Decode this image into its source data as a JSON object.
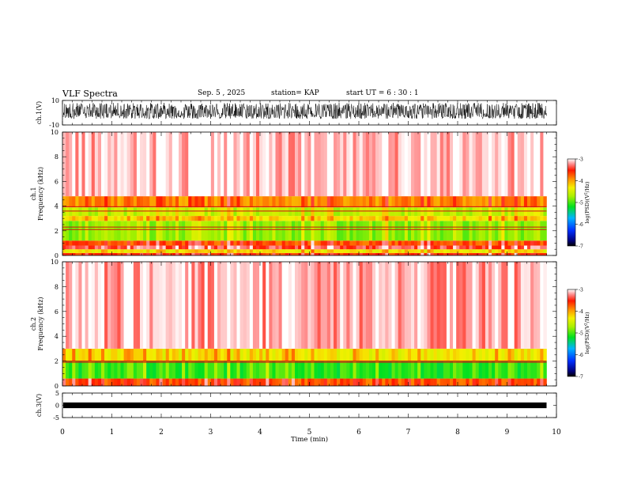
{
  "header": {
    "title": "VLF Spectra",
    "date": "Sep. 5 , 2025",
    "station": "station= KAP",
    "start": "start  UT =   6 : 30 : 1"
  },
  "chart_data": [
    {
      "type": "line",
      "title": "ch.1(V)",
      "ylabel": "ch.1(V)",
      "ylim": [
        -10,
        10
      ],
      "ytick_labels": [
        "10",
        "-10"
      ],
      "xlim": [
        0,
        10
      ],
      "data_extent_min": 9.8,
      "description": "noisy waveform oscillating mostly between about -5 and +8 V"
    },
    {
      "type": "heatmap",
      "title": "ch.1 spectrogram",
      "ylabel": "ch.1\nFrequency (kHz)",
      "ylabel_lines": [
        "ch.1",
        "Frequency  (kHz)"
      ],
      "ylim": [
        0,
        10
      ],
      "ytick_labels": [
        "0",
        "2",
        "4",
        "6",
        "8",
        "10"
      ],
      "xlim": [
        0,
        10
      ],
      "colorbar": {
        "label": "log(PSD)(V²/Hz)",
        "label_text": "log(PSD)(V",
        "label_sup": "2",
        "label_end": "/Hz)",
        "range": [
          -7,
          -3
        ],
        "tick_labels": [
          "-3",
          "-4",
          "-5",
          "-6",
          "-7"
        ]
      },
      "bands": [
        {
          "from_khz": 0.0,
          "to_khz": 0.2,
          "level": -3.6
        },
        {
          "from_khz": 0.2,
          "to_khz": 0.5,
          "level": -4.3
        },
        {
          "from_khz": 0.5,
          "to_khz": 0.8,
          "level": -3.4
        },
        {
          "from_khz": 0.8,
          "to_khz": 1.2,
          "level": -3.7
        },
        {
          "from_khz": 1.2,
          "to_khz": 2.8,
          "level": -4.8
        },
        {
          "from_khz": 2.8,
          "to_khz": 3.2,
          "level": -4.2
        },
        {
          "from_khz": 3.2,
          "to_khz": 3.9,
          "level": -4.6
        },
        {
          "from_khz": 3.9,
          "to_khz": 4.8,
          "level": -3.9
        },
        {
          "from_khz": 4.8,
          "to_khz": 10.0,
          "level": -3.15
        }
      ],
      "lines_khz": [
        2.1,
        2.3,
        3.95,
        3.6
      ]
    },
    {
      "type": "heatmap",
      "title": "ch.2 spectrogram",
      "ylabel": "ch.2\nFrequency (kHz)",
      "ylabel_lines": [
        "ch.2",
        "Frequency  (kHz)"
      ],
      "ylim": [
        0,
        10
      ],
      "ytick_labels": [
        "0",
        "2",
        "4",
        "6",
        "8",
        "10"
      ],
      "xlim": [
        0,
        10
      ],
      "colorbar": {
        "label": "log(PSD)(V²/Hz)",
        "label_text": "log(PSD)(V",
        "label_sup": "2",
        "label_end": "/Hz)",
        "range": [
          -7,
          -3
        ],
        "tick_labels": [
          "-3",
          "-4",
          "-5",
          "-6",
          "-7"
        ]
      },
      "bands": [
        {
          "from_khz": 0.0,
          "to_khz": 0.6,
          "level": -3.7
        },
        {
          "from_khz": 0.6,
          "to_khz": 2.0,
          "level": -5.1
        },
        {
          "from_khz": 2.0,
          "to_khz": 3.0,
          "level": -4.3
        },
        {
          "from_khz": 3.0,
          "to_khz": 10.0,
          "level": -3.2
        }
      ],
      "lines_khz": [
        1.9,
        2.0
      ]
    },
    {
      "type": "line",
      "title": "ch.3(V)",
      "ylabel": "ch.3(V)",
      "ylim": [
        -5,
        5
      ],
      "ytick_labels": [
        "5",
        "0",
        "-5"
      ],
      "xlim": [
        0,
        10
      ],
      "data_extent_min": 9.8,
      "description": "nearly constant thick trace near 0 V"
    }
  ],
  "x_axis": {
    "label": "Time  (min)",
    "tick_labels": [
      "0",
      "1",
      "2",
      "3",
      "4",
      "5",
      "6",
      "7",
      "8",
      "9",
      "10"
    ]
  }
}
